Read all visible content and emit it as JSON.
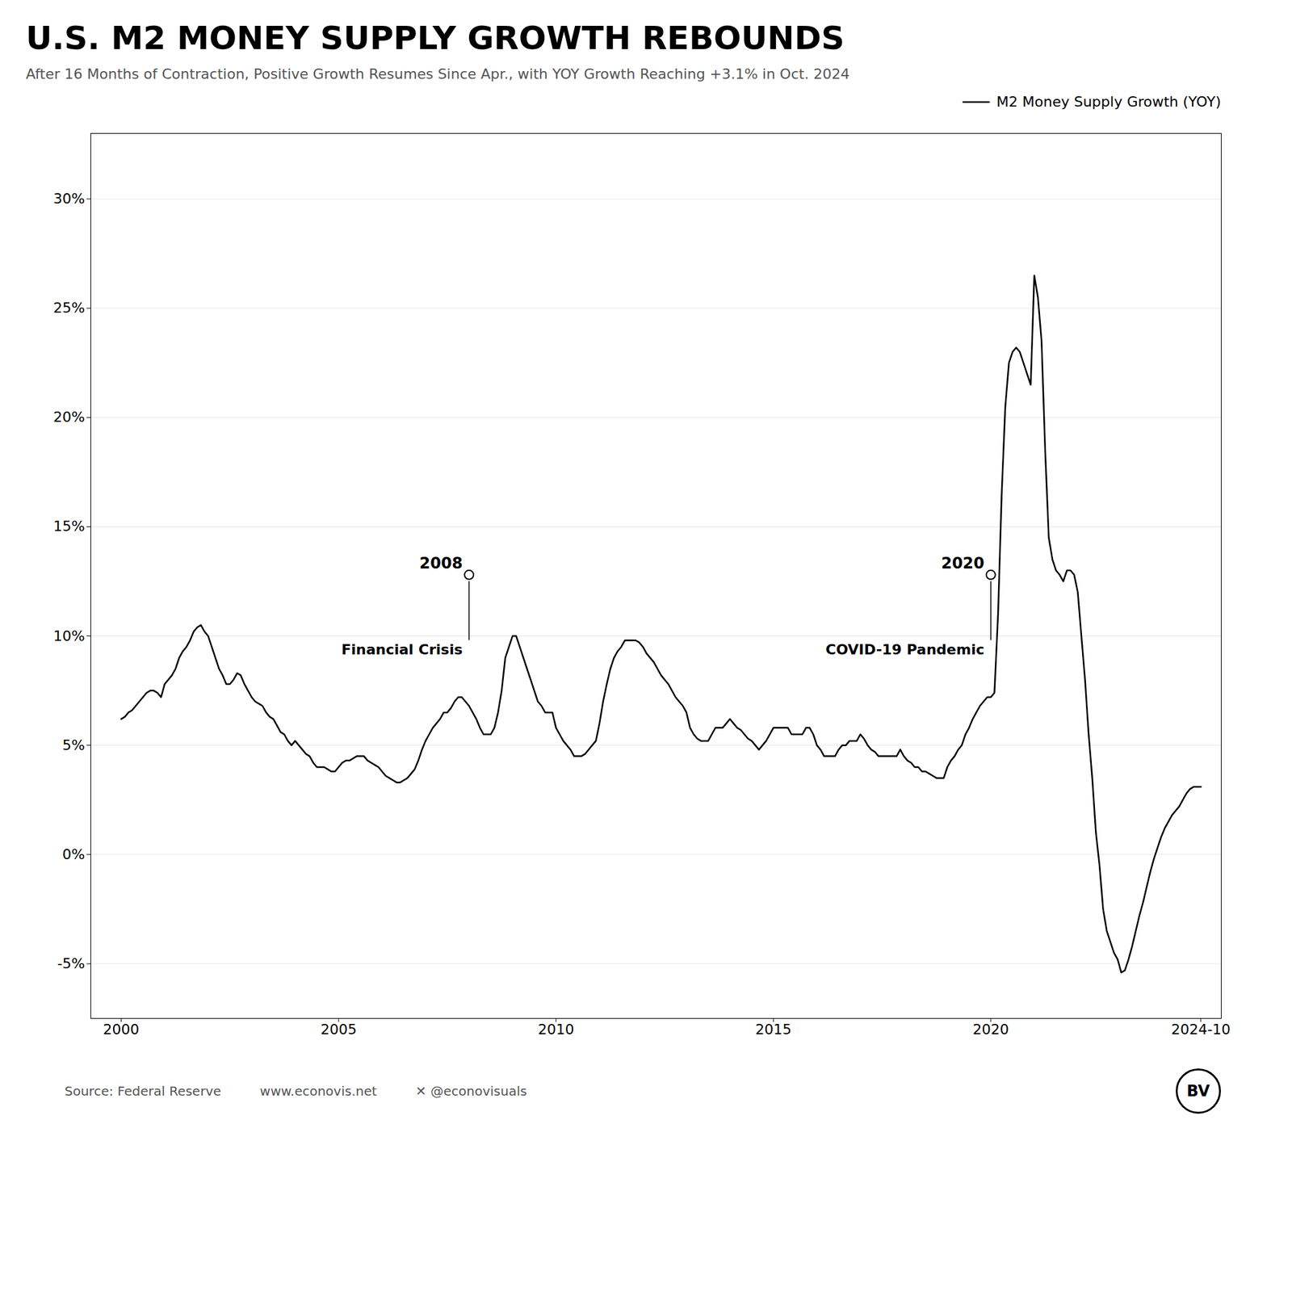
{
  "chart_data": {
    "type": "area",
    "title": "U.S. M2 MONEY SUPPLY GROWTH REBOUNDS",
    "subtitle": "After 16 Months of Contraction, Positive Growth Resumes Since Apr., with YOY Growth Reaching +3.1% in Oct. 2024",
    "x": [
      2000.0,
      2000.083,
      2000.167,
      2000.25,
      2000.333,
      2000.417,
      2000.5,
      2000.583,
      2000.667,
      2000.75,
      2000.833,
      2000.917,
      2001.0,
      2001.083,
      2001.167,
      2001.25,
      2001.333,
      2001.417,
      2001.5,
      2001.583,
      2001.667,
      2001.75,
      2001.833,
      2001.917,
      2002.0,
      2002.083,
      2002.167,
      2002.25,
      2002.333,
      2002.417,
      2002.5,
      2002.583,
      2002.667,
      2002.75,
      2002.833,
      2002.917,
      2003.0,
      2003.083,
      2003.167,
      2003.25,
      2003.333,
      2003.417,
      2003.5,
      2003.583,
      2003.667,
      2003.75,
      2003.833,
      2003.917,
      2004.0,
      2004.083,
      2004.167,
      2004.25,
      2004.333,
      2004.417,
      2004.5,
      2004.583,
      2004.667,
      2004.75,
      2004.833,
      2004.917,
      2005.0,
      2005.083,
      2005.167,
      2005.25,
      2005.333,
      2005.417,
      2005.5,
      2005.583,
      2005.667,
      2005.75,
      2005.833,
      2005.917,
      2006.0,
      2006.083,
      2006.167,
      2006.25,
      2006.333,
      2006.417,
      2006.5,
      2006.583,
      2006.667,
      2006.75,
      2006.833,
      2006.917,
      2007.0,
      2007.083,
      2007.167,
      2007.25,
      2007.333,
      2007.417,
      2007.5,
      2007.583,
      2007.667,
      2007.75,
      2007.833,
      2007.917,
      2008.0,
      2008.083,
      2008.167,
      2008.25,
      2008.333,
      2008.417,
      2008.5,
      2008.583,
      2008.667,
      2008.75,
      2008.833,
      2008.917,
      2009.0,
      2009.083,
      2009.167,
      2009.25,
      2009.333,
      2009.417,
      2009.5,
      2009.583,
      2009.667,
      2009.75,
      2009.833,
      2009.917,
      2010.0,
      2010.083,
      2010.167,
      2010.25,
      2010.333,
      2010.417,
      2010.5,
      2010.583,
      2010.667,
      2010.75,
      2010.833,
      2010.917,
      2011.0,
      2011.083,
      2011.167,
      2011.25,
      2011.333,
      2011.417,
      2011.5,
      2011.583,
      2011.667,
      2011.75,
      2011.833,
      2011.917,
      2012.0,
      2012.083,
      2012.167,
      2012.25,
      2012.333,
      2012.417,
      2012.5,
      2012.583,
      2012.667,
      2012.75,
      2012.833,
      2012.917,
      2013.0,
      2013.083,
      2013.167,
      2013.25,
      2013.333,
      2013.417,
      2013.5,
      2013.583,
      2013.667,
      2013.75,
      2013.833,
      2013.917,
      2014.0,
      2014.083,
      2014.167,
      2014.25,
      2014.333,
      2014.417,
      2014.5,
      2014.583,
      2014.667,
      2014.75,
      2014.833,
      2014.917,
      2015.0,
      2015.083,
      2015.167,
      2015.25,
      2015.333,
      2015.417,
      2015.5,
      2015.583,
      2015.667,
      2015.75,
      2015.833,
      2015.917,
      2016.0,
      2016.083,
      2016.167,
      2016.25,
      2016.333,
      2016.417,
      2016.5,
      2016.583,
      2016.667,
      2016.75,
      2016.833,
      2016.917,
      2017.0,
      2017.083,
      2017.167,
      2017.25,
      2017.333,
      2017.417,
      2017.5,
      2017.583,
      2017.667,
      2017.75,
      2017.833,
      2017.917,
      2018.0,
      2018.083,
      2018.167,
      2018.25,
      2018.333,
      2018.417,
      2018.5,
      2018.583,
      2018.667,
      2018.75,
      2018.833,
      2018.917,
      2019.0,
      2019.083,
      2019.167,
      2019.25,
      2019.333,
      2019.417,
      2019.5,
      2019.583,
      2019.667,
      2019.75,
      2019.833,
      2019.917,
      2020.0,
      2020.083,
      2020.167,
      2020.25,
      2020.333,
      2020.417,
      2020.5,
      2020.583,
      2020.667,
      2020.75,
      2020.833,
      2020.917,
      2021.0,
      2021.083,
      2021.167,
      2021.25,
      2021.333,
      2021.417,
      2021.5,
      2021.583,
      2021.667,
      2021.75,
      2021.833,
      2021.917,
      2022.0,
      2022.083,
      2022.167,
      2022.25,
      2022.333,
      2022.417,
      2022.5,
      2022.583,
      2022.667,
      2022.75,
      2022.833,
      2022.917,
      2023.0,
      2023.083,
      2023.167,
      2023.25,
      2023.333,
      2023.417,
      2023.5,
      2023.583,
      2023.667,
      2023.75,
      2023.833,
      2023.917,
      2024.0,
      2024.083,
      2024.167,
      2024.25,
      2024.333,
      2024.417,
      2024.5,
      2024.583,
      2024.667,
      2024.75,
      2024.833
    ],
    "series": [
      {
        "name": "M2 Money Supply Growth (YOY)",
        "values": [
          6.2,
          6.3,
          6.5,
          6.6,
          6.8,
          7.0,
          7.2,
          7.4,
          7.5,
          7.5,
          7.4,
          7.2,
          7.8,
          8.0,
          8.2,
          8.5,
          9.0,
          9.3,
          9.5,
          9.8,
          10.2,
          10.4,
          10.5,
          10.2,
          10.0,
          9.5,
          9.0,
          8.5,
          8.2,
          7.8,
          7.8,
          8.0,
          8.3,
          8.2,
          7.8,
          7.5,
          7.2,
          7.0,
          6.9,
          6.8,
          6.5,
          6.3,
          6.2,
          5.9,
          5.6,
          5.5,
          5.2,
          5.0,
          5.2,
          5.0,
          4.8,
          4.6,
          4.5,
          4.2,
          4.0,
          4.0,
          4.0,
          3.9,
          3.8,
          3.8,
          4.0,
          4.2,
          4.3,
          4.3,
          4.4,
          4.5,
          4.5,
          4.5,
          4.3,
          4.2,
          4.1,
          4.0,
          3.8,
          3.6,
          3.5,
          3.4,
          3.3,
          3.3,
          3.4,
          3.5,
          3.7,
          3.9,
          4.3,
          4.8,
          5.2,
          5.5,
          5.8,
          6.0,
          6.2,
          6.5,
          6.5,
          6.7,
          7.0,
          7.2,
          7.2,
          7.0,
          6.8,
          6.5,
          6.2,
          5.8,
          5.5,
          5.5,
          5.5,
          5.8,
          6.5,
          7.5,
          9.0,
          9.5,
          10.0,
          10.0,
          9.5,
          9.0,
          8.5,
          8.0,
          7.5,
          7.0,
          6.8,
          6.5,
          6.5,
          6.5,
          5.8,
          5.5,
          5.2,
          5.0,
          4.8,
          4.5,
          4.5,
          4.5,
          4.6,
          4.8,
          5.0,
          5.2,
          6.0,
          7.0,
          7.8,
          8.5,
          9.0,
          9.3,
          9.5,
          9.8,
          9.8,
          9.8,
          9.8,
          9.7,
          9.5,
          9.2,
          9.0,
          8.8,
          8.5,
          8.2,
          8.0,
          7.8,
          7.5,
          7.2,
          7.0,
          6.8,
          6.5,
          5.8,
          5.5,
          5.3,
          5.2,
          5.2,
          5.2,
          5.5,
          5.8,
          5.8,
          5.8,
          6.0,
          6.2,
          6.0,
          5.8,
          5.7,
          5.5,
          5.3,
          5.2,
          5.0,
          4.8,
          5.0,
          5.2,
          5.5,
          5.8,
          5.8,
          5.8,
          5.8,
          5.8,
          5.5,
          5.5,
          5.5,
          5.5,
          5.8,
          5.8,
          5.5,
          5.0,
          4.8,
          4.5,
          4.5,
          4.5,
          4.5,
          4.8,
          5.0,
          5.0,
          5.2,
          5.2,
          5.2,
          5.5,
          5.3,
          5.0,
          4.8,
          4.7,
          4.5,
          4.5,
          4.5,
          4.5,
          4.5,
          4.5,
          4.8,
          4.5,
          4.3,
          4.2,
          4.0,
          4.0,
          3.8,
          3.8,
          3.7,
          3.6,
          3.5,
          3.5,
          3.5,
          4.0,
          4.3,
          4.5,
          4.8,
          5.0,
          5.5,
          5.8,
          6.2,
          6.5,
          6.8,
          7.0,
          7.2,
          7.2,
          7.4,
          11.0,
          16.5,
          20.5,
          22.5,
          23.0,
          23.2,
          23.0,
          22.5,
          22.0,
          21.5,
          26.5,
          25.5,
          23.5,
          18.5,
          14.5,
          13.5,
          13.0,
          12.8,
          12.5,
          13.0,
          13.0,
          12.8,
          12.0,
          10.0,
          8.0,
          5.5,
          3.5,
          1.0,
          -0.5,
          -2.5,
          -3.5,
          -4.0,
          -4.5,
          -4.8,
          -5.4,
          -5.3,
          -4.8,
          -4.2,
          -3.5,
          -2.8,
          -2.2,
          -1.5,
          -0.8,
          -0.2,
          0.3,
          0.8,
          1.2,
          1.5,
          1.8,
          2.0,
          2.2,
          2.5,
          2.8,
          3.0,
          3.1,
          3.1,
          3.1
        ]
      }
    ],
    "colors": [
      "#5abfb8",
      "#3d7a72"
    ],
    "xlim": [
      1999.3,
      2025.3
    ],
    "xticks": [
      2000,
      2005,
      2010,
      2015,
      2020,
      {
        "value": 2024.83,
        "label": "2024-10"
      }
    ],
    "ylim": [
      -7.5,
      33
    ],
    "yticks": [
      {
        "value": -5,
        "label": "-5%"
      },
      {
        "value": 0,
        "label": "0%"
      },
      {
        "value": 5,
        "label": "5%"
      },
      {
        "value": 10,
        "label": "10%"
      },
      {
        "value": 15,
        "label": "15%"
      },
      {
        "value": 20,
        "label": "20%"
      },
      {
        "value": 25,
        "label": "25%"
      },
      {
        "value": 30,
        "label": "30%"
      }
    ],
    "grid": true,
    "legend": "upper right",
    "annotations": [
      {
        "x": 2008.0,
        "y": 12.8,
        "y1": 9.8,
        "y2": 12.5,
        "text": "2008",
        "subtext": "Financial Crisis"
      },
      {
        "x": 2020.0,
        "y": 12.8,
        "y1": 9.8,
        "y2": 12.5,
        "text": "2020",
        "subtext": "COVID-19 Pandemic"
      }
    ],
    "source": "Source: Federal Reserve",
    "website": "www.econovis.net",
    "twitter": "✕  @econovisuals",
    "logo": "BV"
  }
}
